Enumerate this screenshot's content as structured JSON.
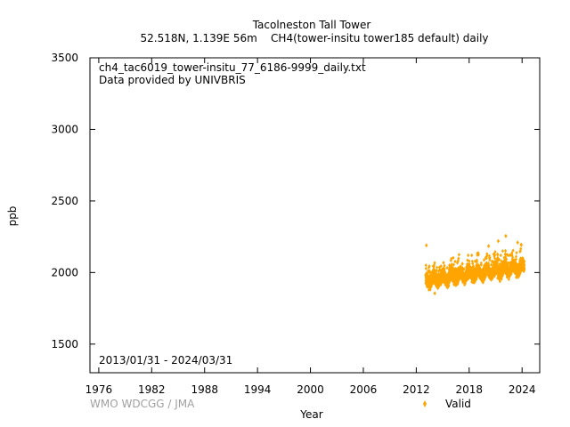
{
  "chart_data": {
    "type": "scatter",
    "title": "Tacolneston Tall Tower",
    "subtitle": "52.518N, 1.139E 56m    CH4(tower-insitu tower185 default) daily",
    "file_label": "ch4_tac6019_tower-insitu_77_6186-9999_daily.txt",
    "provider_label": "Data provided by UNIVBRIS",
    "date_range_label": "2013/01/31 - 2024/03/31",
    "xlabel": "Year",
    "ylabel": "ppb",
    "xlim": [
      1975,
      2026
    ],
    "ylim": [
      1300,
      3500
    ],
    "x_ticks": [
      1976,
      1982,
      1988,
      1994,
      2000,
      2006,
      2012,
      2018,
      2024
    ],
    "y_ticks": [
      1500,
      2000,
      2500,
      3000,
      3500
    ],
    "grid": false,
    "legend_position": "bottom-right",
    "series": [
      {
        "name": "Valid",
        "color": "#ffa500",
        "marker": "diamond",
        "x_start": "2013/01/31",
        "x_end": "2024/03/31",
        "trend_y": [
          1945,
          2040
        ],
        "y_envelope_min": 1850,
        "y_envelope_max": 2260,
        "notable_points": [
          {
            "x": 2013.15,
            "y": 2190
          },
          {
            "x": 2014.1,
            "y": 1855
          },
          {
            "x": 2020.2,
            "y": 2185
          },
          {
            "x": 2021.3,
            "y": 2220
          },
          {
            "x": 2022.15,
            "y": 2255
          },
          {
            "x": 2023.5,
            "y": 2210
          },
          {
            "x": 2023.9,
            "y": 2195
          }
        ]
      }
    ],
    "watermark": "WMO WDCGG / JMA"
  }
}
